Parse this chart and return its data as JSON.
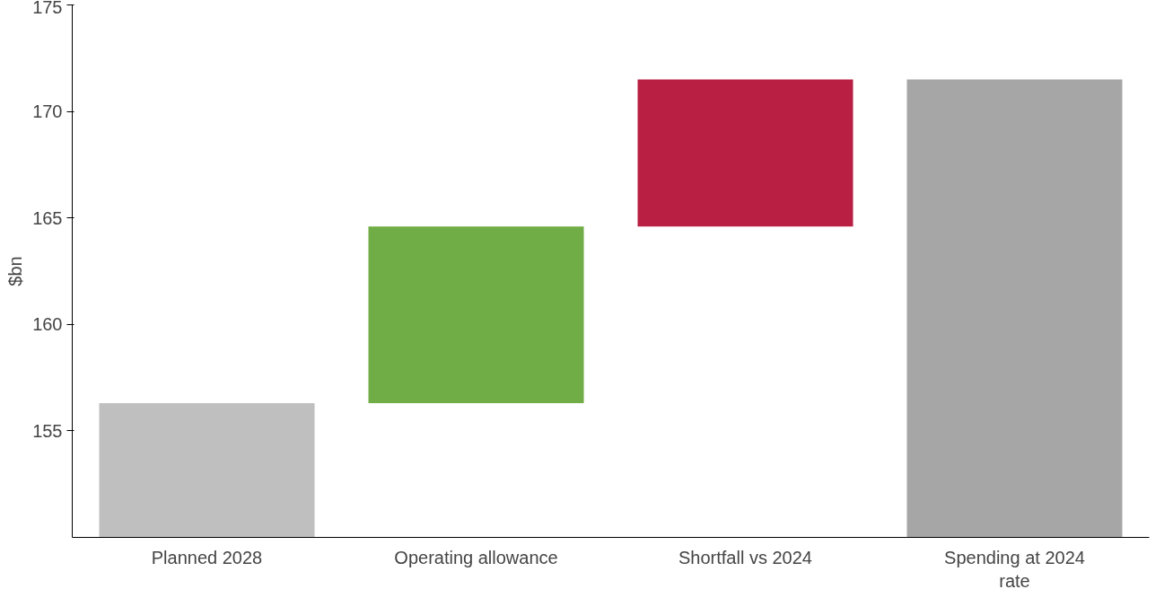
{
  "chart_data": {
    "type": "bar",
    "ylabel": "$bn",
    "categories": [
      "Planned 2028",
      "Operating allowance",
      "Shortfall vs 2024",
      "Spending at 2024 rate"
    ],
    "values": [
      156.3,
      8.3,
      6.9,
      171.5
    ],
    "base": [
      null,
      156.3,
      164.6,
      null
    ],
    "colors": [
      "#bfbfbf",
      "#70ad47",
      "#b91f42",
      "#a6a6a6"
    ],
    "ylim": [
      150,
      175
    ],
    "yticks": [
      155,
      160,
      165,
      170,
      175
    ],
    "grid": false
  }
}
